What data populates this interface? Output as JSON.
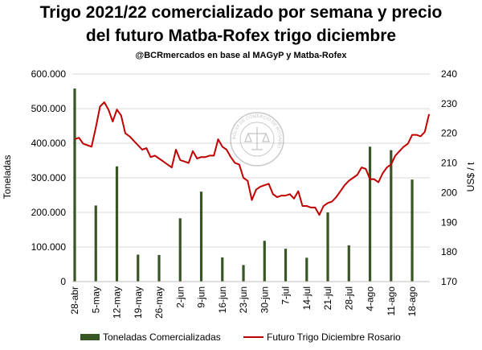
{
  "title_line1": "Trigo 2021/22 comercializado por semana y precio",
  "title_line2": "del futuro Matba-Rofex trigo diciembre",
  "subtitle": "@BCRmercados en base al MAGyP y Matba-Rofex",
  "watermark_text": "BOLSA DE COMERCIO DE ROSARIO",
  "colors": {
    "bars": "#375623",
    "line": "#c00000",
    "grid": "#d9d9d9"
  },
  "chart_data": {
    "type": "bar",
    "xlabel": "",
    "ylabel": "Toneladas",
    "y2label": "US$ / t",
    "ylim": [
      0,
      600000
    ],
    "y2lim": [
      170,
      240
    ],
    "yticks": [
      "0",
      "100.000",
      "200.000",
      "300.000",
      "400.000",
      "500.000",
      "600.000"
    ],
    "y2ticks": [
      "170",
      "180",
      "190",
      "200",
      "210",
      "220",
      "230",
      "240"
    ],
    "categories": [
      "28-abr",
      "5-may",
      "12-may",
      "19-may",
      "26-may",
      "2-jun",
      "9-jun",
      "16-jun",
      "23-jun",
      "30-jun",
      "7-jul",
      "14-jul",
      "21-jul",
      "28-jul",
      "4-ago",
      "11-ago",
      "18-ago"
    ],
    "series": [
      {
        "name": "Toneladas Comercializadas",
        "type": "bar",
        "axis": "left",
        "values": [
          558000,
          220000,
          333000,
          78000,
          77000,
          183000,
          260000,
          70000,
          48000,
          118000,
          95000,
          69000,
          200000,
          105000,
          390000,
          380000,
          295000
        ]
      },
      {
        "name": "Futuro Trigo Diciembre Rosario",
        "type": "line",
        "axis": "right",
        "x": [
          0,
          0.2,
          0.4,
          0.6,
          0.8,
          1.0,
          1.2,
          1.4,
          1.6,
          1.8,
          2.0,
          2.2,
          2.4,
          2.6,
          2.8,
          3.0,
          3.2,
          3.4,
          3.6,
          3.8,
          4.0,
          4.2,
          4.4,
          4.6,
          4.8,
          5.0,
          5.2,
          5.4,
          5.6,
          5.8,
          6.0,
          6.2,
          6.4,
          6.6,
          6.8,
          7.0,
          7.2,
          7.4,
          7.6,
          7.8,
          8.0,
          8.2,
          8.4,
          8.6,
          8.8,
          9.0,
          9.2,
          9.4,
          9.6,
          9.8,
          10.0,
          10.2,
          10.4,
          10.6,
          10.8,
          11.0,
          11.2,
          11.4,
          11.6,
          11.8,
          12.0,
          12.2,
          12.4,
          12.6,
          12.8,
          13.0,
          13.2,
          13.4,
          13.6,
          13.8,
          14.0,
          14.2,
          14.4,
          14.6,
          14.8,
          15.0,
          15.2,
          15.4,
          15.6,
          15.8,
          16.0,
          16.2,
          16.4,
          16.6,
          16.8
        ],
        "values": [
          218,
          218.5,
          216.5,
          216,
          215.5,
          222,
          229,
          230.5,
          228,
          224,
          228,
          226,
          220,
          219,
          217.5,
          216,
          214.5,
          215,
          212,
          212.5,
          211.5,
          210.5,
          209.5,
          208.5,
          214.5,
          211,
          210.5,
          210,
          214,
          211.5,
          212,
          212,
          212.5,
          212.5,
          218,
          215.5,
          214.5,
          212,
          210,
          209.5,
          205,
          204,
          197.5,
          201,
          202,
          202.5,
          203,
          199.5,
          198.5,
          199,
          199,
          199.5,
          198,
          200.5,
          195.5,
          195.5,
          195,
          195,
          192.5,
          195.5,
          196.5,
          197,
          198.5,
          200.5,
          202.5,
          204,
          205,
          206,
          208.5,
          208,
          204.5,
          204.5,
          203.5,
          206.5,
          208.5,
          209.5,
          212.5,
          214,
          215.5,
          216.5,
          219.5,
          219.5,
          219,
          220.5,
          226.5
        ]
      }
    ],
    "legend": {
      "position": "bottom"
    },
    "grid": true
  }
}
